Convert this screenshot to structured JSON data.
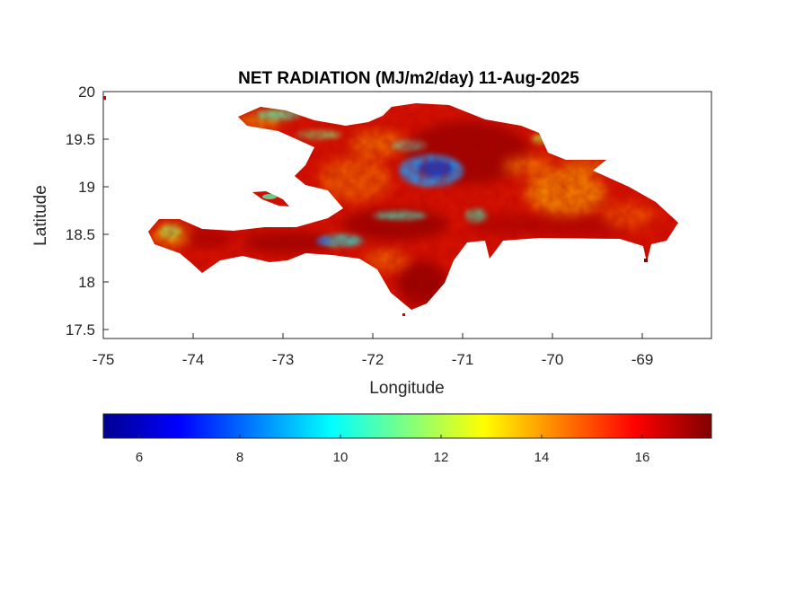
{
  "title": "NET RADIATION (MJ/m2/day) 11-Aug-2025",
  "axes": {
    "xlabel": "Longitude",
    "ylabel": "Latitude",
    "xlim": [
      -75,
      -68.3
    ],
    "ylim": [
      17.4,
      20
    ],
    "xticks": [
      -75,
      -74,
      -73,
      -72,
      -71,
      -70,
      -69
    ],
    "xtick_labels": [
      "-75",
      "-74",
      "-73",
      "-72",
      "-71",
      "-70",
      "-69"
    ],
    "yticks": [
      17.5,
      18,
      18.5,
      19,
      19.5,
      20
    ],
    "ytick_labels": [
      "17.5",
      "18",
      "18.5",
      "19",
      "19.5",
      "20"
    ]
  },
  "colorbar": {
    "colormap": "jet",
    "range": [
      5.3,
      17.4
    ],
    "ticks": [
      6,
      8,
      10,
      12,
      14,
      16
    ],
    "tick_labels": [
      "6",
      "8",
      "10",
      "12",
      "14",
      "16"
    ],
    "orientation": "horizontal",
    "placement": "bottom"
  },
  "map": {
    "region": "Hispaniola",
    "dominant_range": [
      13,
      17.4
    ],
    "low_value_zones": [
      {
        "lon": -71.3,
        "lat": 19.2,
        "value": 8
      },
      {
        "lon": -72.3,
        "lat": 18.5,
        "value": 10
      },
      {
        "lon": -72.1,
        "lat": 18.7,
        "value": 10.5
      },
      {
        "lon": -73.4,
        "lat": 19.8,
        "value": 11
      },
      {
        "lon": -74.4,
        "lat": 18.5,
        "value": 12
      },
      {
        "lon": -69.8,
        "lat": 19.0,
        "value": 12.5
      }
    ]
  }
}
